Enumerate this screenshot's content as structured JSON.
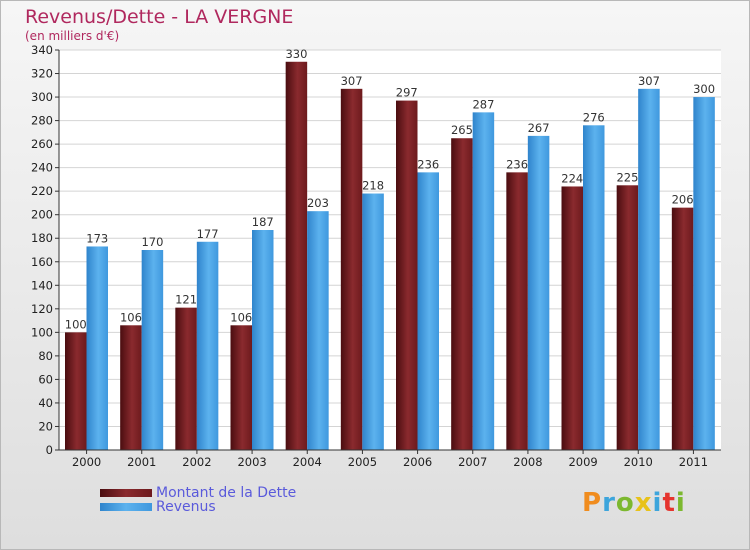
{
  "chart_data": {
    "type": "bar",
    "title": "Revenus/Dette - LA VERGNE",
    "subtitle": "(en milliers d'€)",
    "categories": [
      "2000",
      "2001",
      "2002",
      "2003",
      "2004",
      "2005",
      "2006",
      "2007",
      "2008",
      "2009",
      "2010",
      "2011"
    ],
    "series": [
      {
        "name": "Montant de la Dette",
        "color": "#7a1f22",
        "values": [
          100,
          106,
          121,
          106,
          330,
          307,
          297,
          265,
          236,
          224,
          225,
          206
        ]
      },
      {
        "name": "Revenus",
        "color": "#4da3e6",
        "values": [
          173,
          170,
          177,
          187,
          203,
          218,
          236,
          287,
          267,
          276,
          307,
          300
        ]
      }
    ],
    "ylim": [
      0,
      340
    ],
    "yticks": [
      0,
      20,
      40,
      60,
      80,
      100,
      120,
      140,
      160,
      180,
      200,
      220,
      240,
      260,
      280,
      300,
      320,
      340
    ],
    "grid": true,
    "legend_position": "bottom-left"
  },
  "logo": {
    "letters": [
      "P",
      "r",
      "o",
      "x",
      "i",
      "t",
      "i"
    ],
    "colors": [
      "#f08c1e",
      "#3da5dc",
      "#7cb82f",
      "#e8c21a",
      "#3da5dc",
      "#e5342e",
      "#7cb82f"
    ]
  }
}
